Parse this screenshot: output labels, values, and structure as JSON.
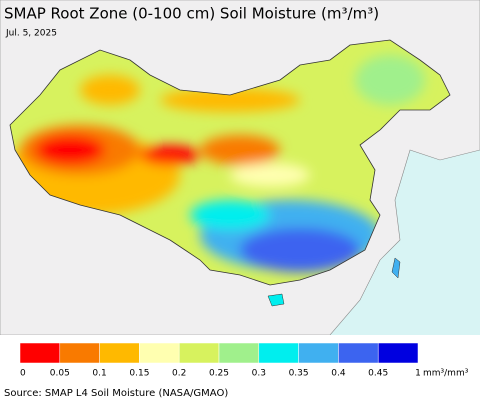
{
  "title": "SMAP Root Zone (0-100 cm) Soil Moisture (m³/m³)",
  "date": "Jul. 5, 2025",
  "legend": {
    "colors": [
      "#ff0000",
      "#f97a00",
      "#ffb900",
      "#ffffb0",
      "#d7f25e",
      "#a0f08c",
      "#00eeee",
      "#40b0f0",
      "#3c64f0",
      "#0000e0"
    ],
    "ticks": [
      0,
      0.05,
      0.1,
      0.15,
      0.2,
      0.25,
      0.3,
      0.35,
      0.4,
      0.45,
      1
    ],
    "unit": "mm³/mm³"
  },
  "source": "Source: SMAP L4 Soil Moisture (NASA/GMAO)"
}
